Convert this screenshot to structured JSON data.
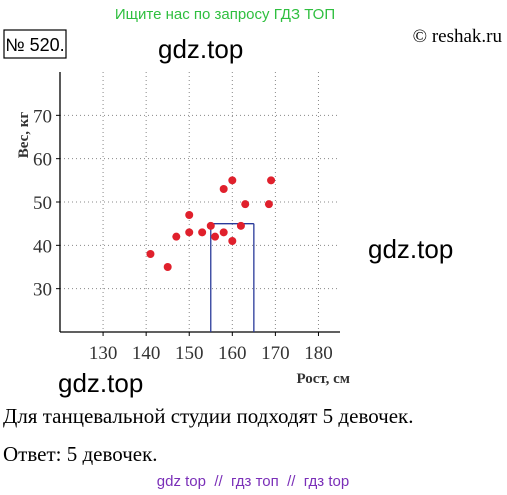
{
  "header": {
    "search_hint": "Ищите нас по запросу ГДЗ ТОП",
    "number": "№ 520.",
    "copyright": "© reshak.ru"
  },
  "watermarks": [
    "gdz.top",
    "gdz.top",
    "gdz.top"
  ],
  "chart_data": {
    "type": "scatter",
    "y_label": "Вес, кг",
    "x_label": "Рост, см",
    "x": [
      141,
      145,
      147,
      150,
      150,
      153,
      155,
      156,
      158,
      158,
      160,
      160,
      162,
      163,
      168.5,
      169
    ],
    "y": [
      38,
      35,
      42,
      47,
      43,
      43,
      44.5,
      42,
      43,
      53,
      55,
      41,
      44.5,
      49.5,
      49.5,
      55
    ],
    "color": "#e0202c",
    "xlim": [
      120,
      185
    ],
    "ylim": [
      20,
      80
    ],
    "xticks": [
      130,
      140,
      150,
      160,
      170,
      180
    ],
    "yticks": [
      30,
      40,
      50,
      60,
      70
    ],
    "grid": true,
    "highlight": {
      "x": [
        155,
        165
      ],
      "y": 45,
      "color": "#2a3a9a"
    }
  },
  "text": {
    "line1": "Для танцевальной студии подходят 5 девочек.",
    "answer": "Ответ: 5 девочек."
  },
  "footer": "gdz top  //  гдз топ  //  гдз top"
}
